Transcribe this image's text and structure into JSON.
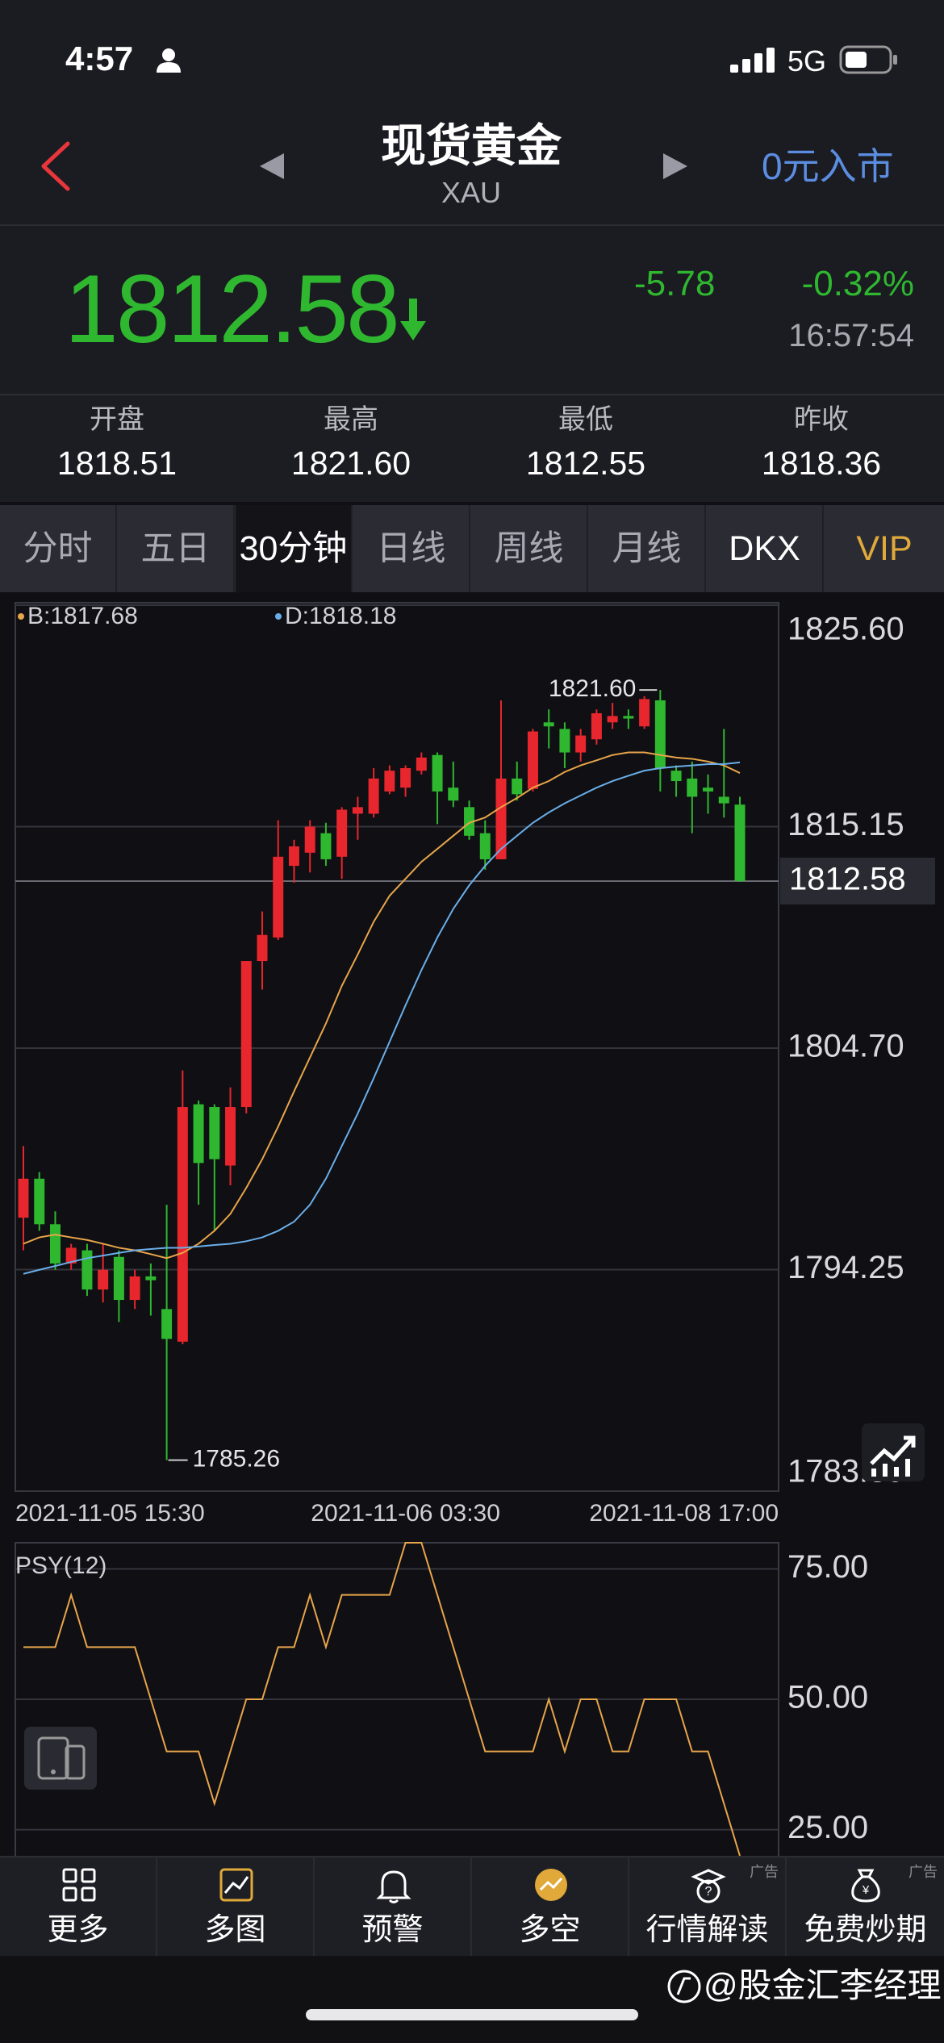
{
  "status_bar": {
    "time": "4:57",
    "network": "5G"
  },
  "header": {
    "title": "现货黄金",
    "subtitle": "XAU",
    "action": "0元入市"
  },
  "quote": {
    "price": "1812.58",
    "change": "-5.78",
    "change_pct": "-0.32%",
    "time": "16:57:54"
  },
  "stats": [
    {
      "label": "开盘",
      "value": "1818.51"
    },
    {
      "label": "最高",
      "value": "1821.60"
    },
    {
      "label": "最低",
      "value": "1812.55"
    },
    {
      "label": "昨收",
      "value": "1818.36"
    }
  ],
  "tabs": [
    "分时",
    "五日",
    "30分钟",
    "日线",
    "周线",
    "月线",
    "DKX",
    "VIP"
  ],
  "chart_data": [
    {
      "type": "candlestick",
      "categories": [
        "2021-11-05 15:30",
        null,
        null,
        null,
        null,
        null,
        null,
        null,
        null,
        null,
        null,
        null,
        null,
        null,
        null,
        null,
        null,
        null,
        null,
        null,
        null,
        null,
        null,
        null,
        "2021-11-06 03:30",
        null,
        null,
        null,
        null,
        null,
        null,
        null,
        null,
        null,
        null,
        null,
        null,
        null,
        null,
        null,
        null,
        null,
        null,
        null,
        null,
        "2021-11-08 17:00"
      ],
      "open": [
        1796.7,
        1798.54,
        1796.39,
        1794.54,
        1795.16,
        1793.31,
        1794.85,
        1792.82,
        1793.93,
        1792.39,
        1790.85,
        1802.05,
        1801.92,
        1799.16,
        1801.92,
        1808.81,
        1809.92,
        1813.3,
        1813.92,
        1814.84,
        1813.73,
        1815.76,
        1815.76,
        1816.81,
        1816.99,
        1817.79,
        1818.53,
        1816.99,
        1816.07,
        1814.84,
        1813.61,
        1817.42,
        1816.93,
        1820.07,
        1819.76,
        1818.65,
        1819.27,
        1820.07,
        1820.37,
        1819.88,
        1821.11,
        1817.79,
        1817.42,
        1816.99,
        1816.56,
        1816.19
      ],
      "high": [
        1800.08,
        1798.85,
        1797.0,
        1795.47,
        1795.47,
        1795.47,
        1795.16,
        1794.24,
        1794.54,
        1797.31,
        1803.65,
        1802.23,
        1802.05,
        1802.85,
        1808.81,
        1811.15,
        1815.45,
        1814.53,
        1815.45,
        1815.33,
        1816.07,
        1816.56,
        1817.91,
        1818.04,
        1818.04,
        1818.65,
        1818.65,
        1818.22,
        1816.38,
        1815.45,
        1821.11,
        1818.22,
        1819.76,
        1820.68,
        1820.07,
        1819.76,
        1820.68,
        1820.99,
        1820.68,
        1821.3,
        1821.6,
        1818.04,
        1818.22,
        1817.61,
        1819.76,
        1816.56
      ],
      "low": [
        1795.16,
        1796.08,
        1794.24,
        1794.24,
        1793.01,
        1792.7,
        1791.78,
        1792.39,
        1792.08,
        1785.26,
        1790.73,
        1797.31,
        1796.08,
        1798.23,
        1801.62,
        1807.46,
        1809.8,
        1812.5,
        1812.99,
        1813.3,
        1812.69,
        1814.53,
        1815.58,
        1816.68,
        1816.56,
        1817.61,
        1815.27,
        1816.07,
        1814.53,
        1813.12,
        1813.61,
        1816.38,
        1816.81,
        1818.84,
        1817.91,
        1818.22,
        1819.02,
        1819.76,
        1819.76,
        1819.76,
        1816.81,
        1816.56,
        1814.84,
        1815.76,
        1815.58,
        1812.55
      ],
      "close": [
        1798.54,
        1796.39,
        1794.54,
        1795.28,
        1793.31,
        1794.24,
        1792.82,
        1793.93,
        1793.75,
        1790.98,
        1801.92,
        1799.28,
        1799.46,
        1801.92,
        1808.81,
        1810.04,
        1813.73,
        1814.22,
        1815.15,
        1813.61,
        1815.95,
        1816.07,
        1817.42,
        1817.79,
        1817.91,
        1818.41,
        1816.81,
        1816.38,
        1814.72,
        1813.61,
        1817.42,
        1816.68,
        1819.64,
        1819.88,
        1818.65,
        1819.45,
        1820.5,
        1820.37,
        1820.25,
        1821.17,
        1817.91,
        1817.3,
        1816.56,
        1816.81,
        1816.25,
        1812.58
      ],
      "up_color": "#e8262d",
      "down_color": "#2fb82f",
      "series": [
        {
          "name": "B:1817.68",
          "color": "#e8a54a",
          "values": [
            1795.47,
            1795.77,
            1795.9,
            1795.77,
            1795.65,
            1795.47,
            1795.28,
            1795.16,
            1794.98,
            1794.79,
            1795.04,
            1795.47,
            1796.08,
            1796.88,
            1798.11,
            1799.46,
            1801.0,
            1802.66,
            1804.26,
            1805.86,
            1807.64,
            1809.12,
            1810.66,
            1811.89,
            1812.69,
            1813.49,
            1814.1,
            1814.72,
            1815.33,
            1815.58,
            1816.07,
            1816.5,
            1816.99,
            1817.3,
            1817.73,
            1818.04,
            1818.28,
            1818.53,
            1818.65,
            1818.65,
            1818.53,
            1818.41,
            1818.35,
            1818.22,
            1818.04,
            1817.68
          ]
        },
        {
          "name": "D:1818.18",
          "color": "#6aaee8",
          "values": [
            1794.05,
            1794.24,
            1794.42,
            1794.61,
            1794.79,
            1794.91,
            1795.04,
            1795.16,
            1795.22,
            1795.28,
            1795.28,
            1795.34,
            1795.41,
            1795.47,
            1795.59,
            1795.77,
            1796.08,
            1796.51,
            1797.31,
            1798.54,
            1800.08,
            1801.62,
            1803.28,
            1805.0,
            1806.72,
            1808.38,
            1809.92,
            1811.27,
            1812.38,
            1813.3,
            1814.1,
            1814.72,
            1815.33,
            1815.82,
            1816.25,
            1816.62,
            1816.99,
            1817.3,
            1817.55,
            1817.79,
            1817.91,
            1817.98,
            1818.04,
            1818.1,
            1818.1,
            1818.18
          ]
        }
      ],
      "high_label": "1821.60",
      "low_label": "1785.26",
      "ylim": [
        1783.8,
        1825.6
      ],
      "yticks": [
        {
          "value": 1783.8,
          "label": "1783.80"
        },
        1794.25,
        {
          "value": 1804.7,
          "label": "1804.70"
        },
        1815.15,
        {
          "value": 1825.6,
          "label": "1825.60"
        }
      ],
      "grid": true
    },
    {
      "type": "line",
      "title": "PSY(12)",
      "color": "#e8a54a",
      "values": [
        60,
        60,
        60,
        70,
        60,
        60,
        60,
        60,
        50,
        40,
        40,
        40,
        30,
        40,
        50,
        50,
        60,
        60,
        70,
        60,
        70,
        70,
        70,
        70,
        80,
        80,
        70,
        60,
        50,
        40,
        40,
        40,
        40,
        50,
        40,
        50,
        50,
        40,
        40,
        50,
        50,
        50,
        40,
        40,
        30,
        20
      ],
      "ylim": [
        20,
        80
      ],
      "yticks": [
        {
          "value": 25,
          "label": "25.00"
        },
        {
          "value": 50,
          "label": "50.00"
        },
        {
          "value": 75,
          "label": "75.00"
        }
      ],
      "grid": true
    }
  ],
  "nav": [
    {
      "label": "更多"
    },
    {
      "label": "多图"
    },
    {
      "label": "预警"
    },
    {
      "label": "多空"
    },
    {
      "label": "行情解读",
      "ad": "广告"
    },
    {
      "label": "免费炒期",
      "ad": "广告"
    }
  ],
  "watermark": "@股金汇李经理"
}
